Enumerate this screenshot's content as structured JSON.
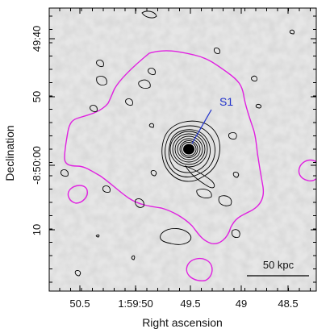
{
  "chart_data": {
    "type": "image-with-contours",
    "xlabel": "Right ascension",
    "ylabel": "Declination",
    "x_ticks": [
      {
        "label": "50.5",
        "ra_s": 50.5
      },
      {
        "label": "1:59:50",
        "ra_s": 50.0
      },
      {
        "label": "49.5",
        "ra_s": 49.5
      },
      {
        "label": "49",
        "ra_s": 49.0
      },
      {
        "label": "48.5",
        "ra_s": 48.5
      }
    ],
    "y_ticks": [
      {
        "label": "49:40",
        "dec_offset_arcsec": -20
      },
      {
        "label": "50",
        "dec_offset_arcsec": -10
      },
      {
        "label": "-8:50:00",
        "dec_offset_arcsec": 0
      },
      {
        "label": "10",
        "dec_offset_arcsec": 10
      }
    ],
    "xlim_ra_s": [
      50.75,
      48.15
    ],
    "ylim_dec_offset_arcsec": [
      -22,
      22
    ],
    "source": {
      "name": "S1",
      "ra_s": 49.6,
      "dec_offset_arcsec": 0.0
    },
    "scale_bar": {
      "label": "50 kpc"
    },
    "colors": {
      "optical_contours": "#000000",
      "xray_contour": "#e020e0",
      "label": "#2233cc",
      "background": "#e2e2e2"
    }
  }
}
